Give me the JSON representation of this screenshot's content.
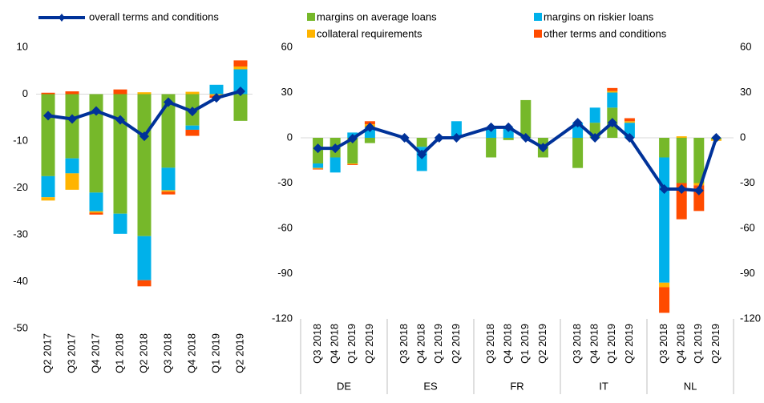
{
  "chart_data": [
    {
      "type": "bar",
      "categories": [
        "Q2 2017",
        "Q3 2017",
        "Q4 2017",
        "Q1 2018",
        "Q2 2018",
        "Q3 2018",
        "Q4 2018",
        "Q1 2019",
        "Q2 2019"
      ],
      "series": [
        {
          "color": "#76b82a",
          "values": [
            -17.5,
            -13.7,
            -21,
            -25.5,
            -30.3,
            -15.7,
            -6.7,
            0,
            -5.7
          ]
        },
        {
          "color": "#00b1ea",
          "values": [
            -4.5,
            -3.2,
            -4,
            -4.3,
            -9.4,
            -4.8,
            -0.9,
            2,
            5.3
          ]
        },
        {
          "color": "#ffb400",
          "values": [
            -0.7,
            -3.5,
            -0.3,
            0,
            0.4,
            -0.3,
            0.5,
            -0.3,
            0.6
          ]
        },
        {
          "color": "#ff4b00",
          "values": [
            0.3,
            0.6,
            -0.4,
            1,
            -1.3,
            -0.6,
            -1.3,
            -0.5,
            1.3
          ]
        },
        {
          "type": "line",
          "name": "overall terms and conditions",
          "color": "#003299",
          "values": [
            -4.6,
            -5.3,
            -3.6,
            -5.5,
            -9,
            -1.7,
            -3.7,
            -0.8,
            0.6
          ]
        }
      ],
      "ylim": [
        -50,
        10
      ],
      "yticks": [
        -50,
        -40,
        -30,
        -20,
        -10,
        0,
        10
      ]
    },
    {
      "type": "bar",
      "categories": [
        "Q3 2018",
        "Q4 2018",
        "Q1 2019",
        "Q2 2019",
        "Q3 2018",
        "Q4 2018",
        "Q1 2019",
        "Q2 2019",
        "Q3 2018",
        "Q4 2018",
        "Q1 2019",
        "Q2 2019",
        "Q3 2018",
        "Q4 2018",
        "Q1 2019",
        "Q2 2019",
        "Q3 2018",
        "Q4 2018",
        "Q1 2019",
        "Q2 2019"
      ],
      "groups": [
        "DE",
        "ES",
        "FR",
        "IT",
        "NL"
      ],
      "series": [
        {
          "name": "margins on average loans",
          "color": "#76b82a",
          "values": [
            -17,
            -13,
            -17,
            -3.5,
            0,
            -6,
            0,
            0,
            -13,
            -1.5,
            25,
            -13,
            -20,
            10,
            20,
            0,
            -13,
            -30,
            -30,
            -1
          ]
        },
        {
          "name": "margins on riskier loans",
          "color": "#00b1ea",
          "values": [
            -3,
            -10,
            3.5,
            7,
            0,
            -16,
            0,
            11,
            7,
            6.5,
            0,
            0,
            10,
            10,
            10,
            10,
            -83,
            0,
            0,
            0
          ]
        },
        {
          "name": "collateral requirements",
          "color": "#ffb400",
          "values": [
            -0.5,
            0,
            -0.5,
            2,
            0,
            0,
            0,
            0,
            0,
            0,
            0,
            0,
            0,
            0,
            1,
            1,
            -3,
            1,
            -1.5,
            -1
          ]
        },
        {
          "name": "other terms and conditions",
          "color": "#ff4b00",
          "values": [
            -0.5,
            0,
            -0.5,
            2,
            0,
            0,
            0,
            0,
            0,
            0,
            0,
            0,
            0,
            0,
            2,
            2,
            -17,
            -24,
            -17,
            0
          ]
        },
        {
          "type": "line",
          "color": "#003299",
          "values": [
            -7,
            -7,
            -0.5,
            7,
            0,
            -11,
            0,
            0,
            7,
            7,
            0,
            -6.5,
            10,
            0,
            10,
            0,
            -34,
            -34,
            -35,
            0
          ]
        }
      ],
      "ylim": [
        -120,
        60
      ],
      "yticks": [
        -120,
        -90,
        -60,
        -30,
        0,
        30,
        60
      ]
    }
  ]
}
